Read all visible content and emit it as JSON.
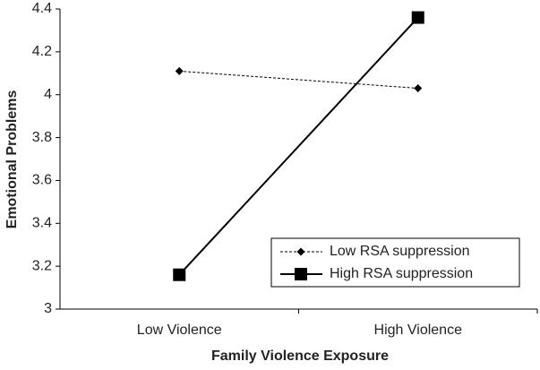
{
  "chart_data": {
    "type": "line",
    "x_label": "Family Violence Exposure",
    "y_label": "Emotional Problems",
    "categories": [
      "Low Violence",
      "High Violence"
    ],
    "series": [
      {
        "name": "Low RSA suppression",
        "color": "#000000",
        "dashed": true,
        "marker": "diamond",
        "values": [
          4.11,
          4.03
        ]
      },
      {
        "name": "High RSA suppression",
        "color": "#000000",
        "dashed": false,
        "marker": "square",
        "values": [
          3.16,
          4.36
        ]
      }
    ],
    "ylim": [
      3,
      4.4
    ],
    "yticks": [
      3,
      3.2,
      3.4,
      3.6,
      3.8,
      4,
      4.2,
      4.4
    ],
    "legend": "lower right"
  }
}
